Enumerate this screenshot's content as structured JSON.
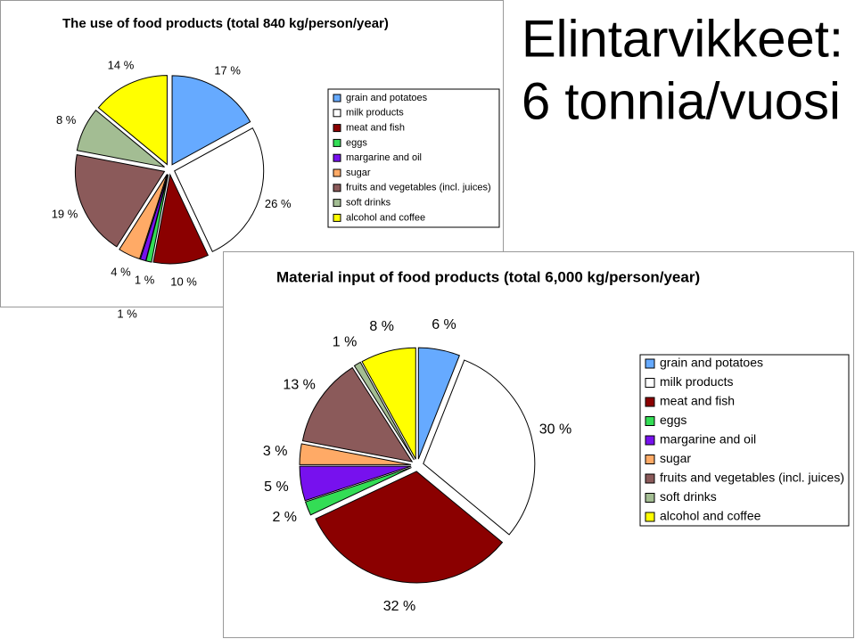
{
  "heading": [
    "Elintarvikkeet:",
    "6 tonnia/vuosi"
  ],
  "chart_data": [
    {
      "type": "pie",
      "title": "The use of food products (total 840 kg/person/year)",
      "categories": [
        "grain and potatoes",
        "milk products",
        "meat and fish",
        "eggs",
        "margarine and oil",
        "sugar",
        "fruits and vegetables (incl. juices)",
        "soft drinks",
        "alcohol and coffee"
      ],
      "values": [
        17,
        26,
        10,
        1,
        1,
        4,
        19,
        8,
        14
      ],
      "value_labels": [
        "17 %",
        "26 %",
        "10 %",
        "1 %",
        "1 %",
        "4 %",
        "19 %",
        "8 %",
        "14 %"
      ],
      "colors": [
        "#66aaff",
        "#ffffff",
        "#8b0000",
        "#33dd55",
        "#7711ee",
        "#ffaa66",
        "#8b5a5a",
        "#a3bd93",
        "#ffff00"
      ]
    },
    {
      "type": "pie",
      "title": "Material input of food products (total 6,000 kg/person/year)",
      "categories": [
        "grain and potatoes",
        "milk products",
        "meat and fish",
        "eggs",
        "margarine and oil",
        "sugar",
        "fruits and vegetables (incl. juices)",
        "soft drinks",
        "alcohol and coffee"
      ],
      "values": [
        6,
        30,
        32,
        2,
        5,
        3,
        13,
        1,
        8
      ],
      "value_labels": [
        "6 %",
        "30 %",
        "32 %",
        "2 %",
        "5 %",
        "3 %",
        "13 %",
        "1 %",
        "8 %"
      ],
      "colors": [
        "#66aaff",
        "#ffffff",
        "#8b0000",
        "#33dd55",
        "#7711ee",
        "#ffaa66",
        "#8b5a5a",
        "#a3bd93",
        "#ffff00"
      ]
    }
  ]
}
